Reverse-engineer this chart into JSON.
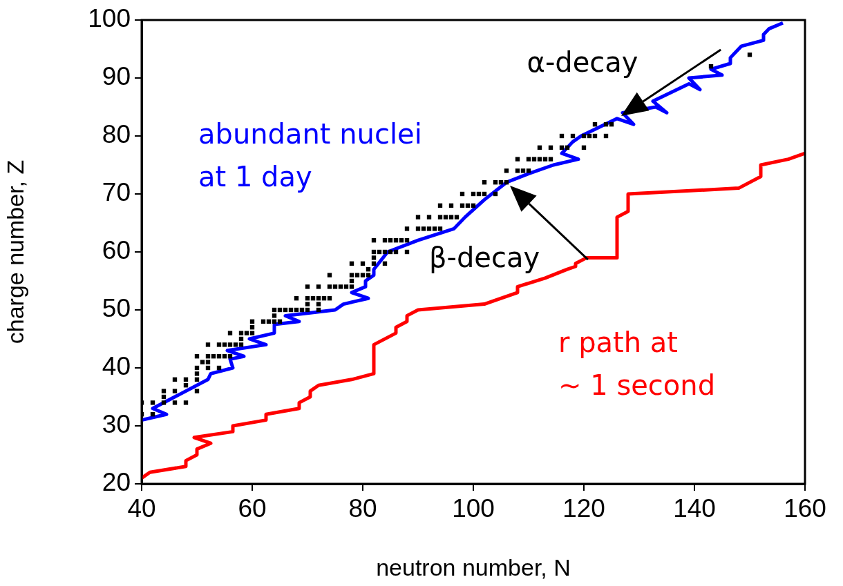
{
  "chart_data": {
    "type": "line",
    "xlabel": "neutron number, N",
    "ylabel": "charge number, Z",
    "xlim": [
      40,
      160
    ],
    "ylim": [
      20,
      100
    ],
    "xticks": [
      40,
      60,
      80,
      100,
      120,
      140,
      160
    ],
    "yticks": [
      20,
      30,
      40,
      50,
      60,
      70,
      80,
      90,
      100
    ],
    "line_style": "solid",
    "series": [
      {
        "type": "scatter",
        "marker": "square",
        "color": "#000000",
        "x": [
          40,
          42,
          40,
          42,
          44,
          46,
          48,
          44,
          44,
          46,
          50,
          48,
          46,
          48,
          50,
          50,
          50,
          52,
          54,
          51,
          52,
          50,
          52,
          53,
          54,
          55,
          56,
          52,
          54,
          55,
          56,
          57,
          58,
          58,
          56,
          58,
          59,
          60,
          60,
          60,
          62,
          63,
          64,
          65,
          64,
          64,
          65,
          66,
          67,
          68,
          69,
          70,
          72,
          70,
          72,
          68,
          70,
          71,
          72,
          73,
          74,
          70,
          72,
          74,
          75,
          76,
          77,
          78,
          78,
          74,
          78,
          79,
          80,
          81,
          81,
          78,
          80,
          82,
          84,
          82,
          82,
          83,
          84,
          85,
          86,
          88,
          82,
          84,
          85,
          86,
          87,
          88,
          88,
          90,
          91,
          92,
          93,
          94,
          90,
          92,
          94,
          95,
          96,
          97,
          94,
          96,
          98,
          99,
          100,
          98,
          100,
          101,
          102,
          104,
          102,
          104,
          105,
          106,
          106,
          108,
          109,
          110,
          108,
          110,
          111,
          112,
          113,
          114,
          112,
          114,
          116,
          117,
          120,
          116,
          118,
          120,
          121,
          122,
          124,
          122,
          124,
          125,
          143,
          150
        ],
        "values": [
          32,
          32,
          34,
          34,
          34,
          34,
          34,
          35,
          36,
          36,
          36,
          37,
          38,
          38,
          38,
          39,
          40,
          40,
          40,
          41,
          41,
          42,
          42,
          42,
          42,
          42,
          42,
          44,
          44,
          44,
          44,
          44,
          44,
          45,
          46,
          46,
          46,
          46,
          47,
          48,
          48,
          48,
          48,
          48,
          49,
          50,
          50,
          50,
          50,
          50,
          50,
          50,
          50,
          51,
          51,
          52,
          52,
          52,
          52,
          52,
          52,
          54,
          54,
          54,
          54,
          54,
          54,
          54,
          55,
          56,
          56,
          56,
          56,
          56,
          57,
          58,
          58,
          58,
          58,
          59,
          60,
          60,
          60,
          60,
          60,
          60,
          62,
          62,
          62,
          62,
          62,
          62,
          64,
          64,
          64,
          64,
          64,
          64,
          66,
          66,
          66,
          66,
          66,
          66,
          68,
          68,
          68,
          68,
          68,
          70,
          70,
          70,
          70,
          70,
          72,
          72,
          72,
          72,
          74,
          74,
          74,
          74,
          76,
          76,
          76,
          76,
          76,
          76,
          78,
          78,
          78,
          78,
          78,
          80,
          80,
          80,
          80,
          80,
          80,
          82,
          82,
          82,
          92,
          94
        ]
      },
      {
        "name": "abundant nuclei\nat 1 day",
        "color": "#0000ff",
        "x": [
          40,
          44.5,
          42,
          52,
          52.5,
          56.5,
          56,
          58.5,
          55.5,
          62.5,
          59.5,
          64,
          64,
          68.5,
          66,
          75,
          76.5,
          81,
          78,
          80.5,
          80.5,
          82,
          82,
          84.5,
          90,
          96.5,
          98.5,
          102,
          106,
          110,
          114.5,
          119,
          116,
          118,
          119.5,
          126,
          129,
          127,
          133,
          135,
          132.5,
          139,
          141,
          139,
          145,
          143,
          146.5,
          146.5,
          148.5,
          152.5,
          152.5,
          153.5,
          156
        ],
        "values": [
          31,
          32,
          33,
          38,
          39,
          40,
          41.5,
          42,
          43,
          44,
          45,
          46,
          47.5,
          48,
          49,
          50,
          51,
          52,
          53,
          54,
          55,
          56,
          57,
          60,
          62,
          64,
          66,
          69,
          72,
          73.5,
          75,
          76,
          77,
          79,
          80,
          83,
          82,
          84,
          85,
          84,
          86,
          89,
          88,
          90,
          90.5,
          91.5,
          92.5,
          93.5,
          95.5,
          96.5,
          97.5,
          98.5,
          99.5
        ]
      },
      {
        "name": "r path at\n∼ 1 second",
        "color": "#ff0000",
        "x": [
          40,
          41.5,
          48,
          48,
          50,
          50,
          52.5,
          49.5,
          56.5,
          56.5,
          62.5,
          62.5,
          68.5,
          68.5,
          70.5,
          70.5,
          72,
          78,
          82,
          82,
          86,
          86,
          88,
          88,
          90,
          102,
          103.5,
          108,
          108,
          113,
          117,
          118.5,
          118.5,
          120.5,
          126,
          126,
          128,
          128,
          148,
          152,
          152,
          157,
          160
        ],
        "values": [
          21,
          22,
          23,
          24,
          25,
          26,
          27,
          28,
          29,
          30,
          31,
          32,
          33,
          34,
          35,
          36,
          37,
          38,
          39,
          44,
          46,
          47,
          48,
          49,
          50,
          51,
          51.5,
          53,
          54,
          55.5,
          57,
          57.5,
          58,
          59,
          59,
          66,
          67,
          70,
          71,
          73,
          75,
          76,
          77
        ]
      }
    ],
    "annotations": [
      {
        "text": "α-decay",
        "x": 126,
        "y": 83
      },
      {
        "text": "β-decay",
        "x": 106,
        "y": 72
      }
    ]
  }
}
